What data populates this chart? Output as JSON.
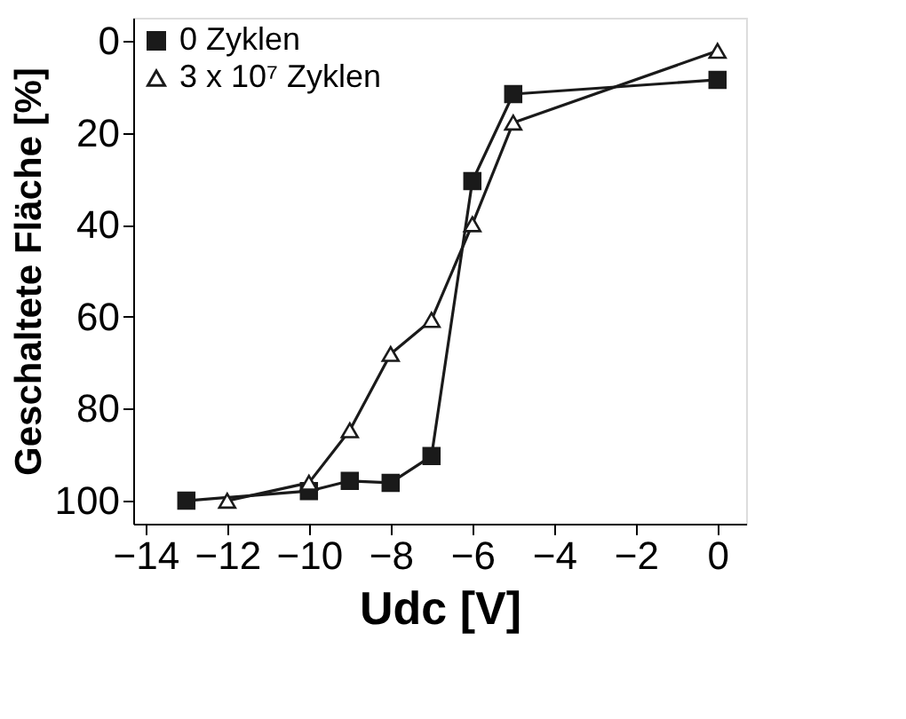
{
  "chart_data": {
    "type": "line",
    "xlabel": "Udc [V]",
    "ylabel": "Geschaltete Fläche [%]",
    "xlim": [
      -14.3,
      0.7
    ],
    "xticks": [
      -14,
      -12,
      -10,
      -8,
      -6,
      -4,
      -2,
      0
    ],
    "ylim": [
      105,
      -5
    ],
    "yticks": [
      0,
      20,
      40,
      60,
      80,
      100
    ],
    "grid": false,
    "legend": "top left",
    "series": [
      {
        "name": "0 Zyklen",
        "color": "#1a1a1a",
        "marker": "square",
        "x": [
          -13,
          -10,
          -9,
          -8,
          -7,
          -6,
          -5,
          0
        ],
        "values": [
          100,
          97.9,
          95.7,
          96.1,
          90.3,
          30.5,
          11.6,
          8.5
        ]
      },
      {
        "name": "3 x 10⁷ Zyklen",
        "color": "#1a1a1a",
        "marker": "triangle",
        "x": [
          -12,
          -10,
          -9,
          -8,
          -7,
          -6,
          -5,
          0
        ],
        "values": [
          100,
          96.1,
          84.7,
          68.1,
          60.7,
          39.9,
          17.8,
          2.2
        ]
      }
    ]
  }
}
